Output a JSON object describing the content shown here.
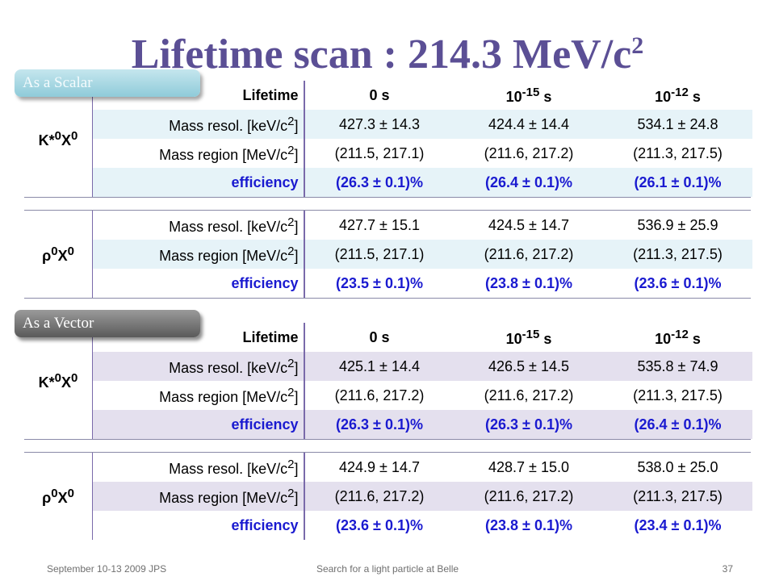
{
  "slide": {
    "title": "Lifetime scan : 214.3 MeV/c",
    "title_sup": "2"
  },
  "badges": {
    "scalar": "As a Scalar",
    "vector": "As a Vector"
  },
  "header": {
    "lifetime": "Lifetime",
    "col0": "0 s",
    "col1_base": "10",
    "col1_exp": "-15",
    "col1_unit": " s",
    "col2_base": "10",
    "col2_exp": "-12",
    "col2_unit": " s"
  },
  "labels": {
    "mass_resol": "Mass resol. [keV/c",
    "mass_region": "Mass region [MeV/c",
    "close": "]",
    "sq": "2",
    "efficiency": "efficiency"
  },
  "processes": {
    "kstar": {
      "a": "K*",
      "a_sup": "0",
      "b": "X",
      "b_sup": "0"
    },
    "rho": {
      "a": "ρ",
      "a_sup": "0",
      "b": "X",
      "b_sup": "0"
    }
  },
  "scalar": {
    "kstar": {
      "mass_resol": [
        "427.3  ± 14.3",
        "424.4  ± 14.4",
        "534.1  ± 24.8"
      ],
      "mass_region": [
        "(211.5, 217.1)",
        "(211.6, 217.2)",
        "(211.3, 217.5)"
      ],
      "efficiency": [
        "(26.3 ± 0.1)%",
        "(26.4 ± 0.1)%",
        "(26.1 ± 0.1)%"
      ]
    },
    "rho": {
      "mass_resol": [
        "427.7  ± 15.1",
        "424.5  ± 14.7",
        "536.9  ± 25.9"
      ],
      "mass_region": [
        "(211.5, 217.1)",
        "(211.6, 217.2)",
        "(211.3, 217.5)"
      ],
      "efficiency": [
        "(23.5 ± 0.1)%",
        "(23.8 ± 0.1)%",
        "(23.6 ± 0.1)%"
      ]
    }
  },
  "vector": {
    "kstar": {
      "mass_resol": [
        "425.1  ± 14.4",
        "426.5  ± 14.5",
        "535.8  ± 74.9"
      ],
      "mass_region": [
        "(211.6, 217.2)",
        "(211.6, 217.2)",
        "(211.3, 217.5)"
      ],
      "efficiency": [
        "(26.3 ± 0.1)%",
        "(26.3 ± 0.1)%",
        "(26.4 ± 0.1)%"
      ]
    },
    "rho": {
      "mass_resol": [
        "424.9  ± 14.7",
        "428.7  ± 15.0",
        "538.0  ± 25.0"
      ],
      "mass_region": [
        "(211.6, 217.2)",
        "(211.6, 217.2)",
        "(211.3, 217.5)"
      ],
      "efficiency": [
        "(23.6 ± 0.1)%",
        "(23.8 ± 0.1)%",
        "(23.4 ± 0.1)%"
      ]
    }
  },
  "footer": {
    "left": "September 10-13 2009 JPS",
    "center": "Search for a light particle at Belle",
    "page": "37"
  }
}
